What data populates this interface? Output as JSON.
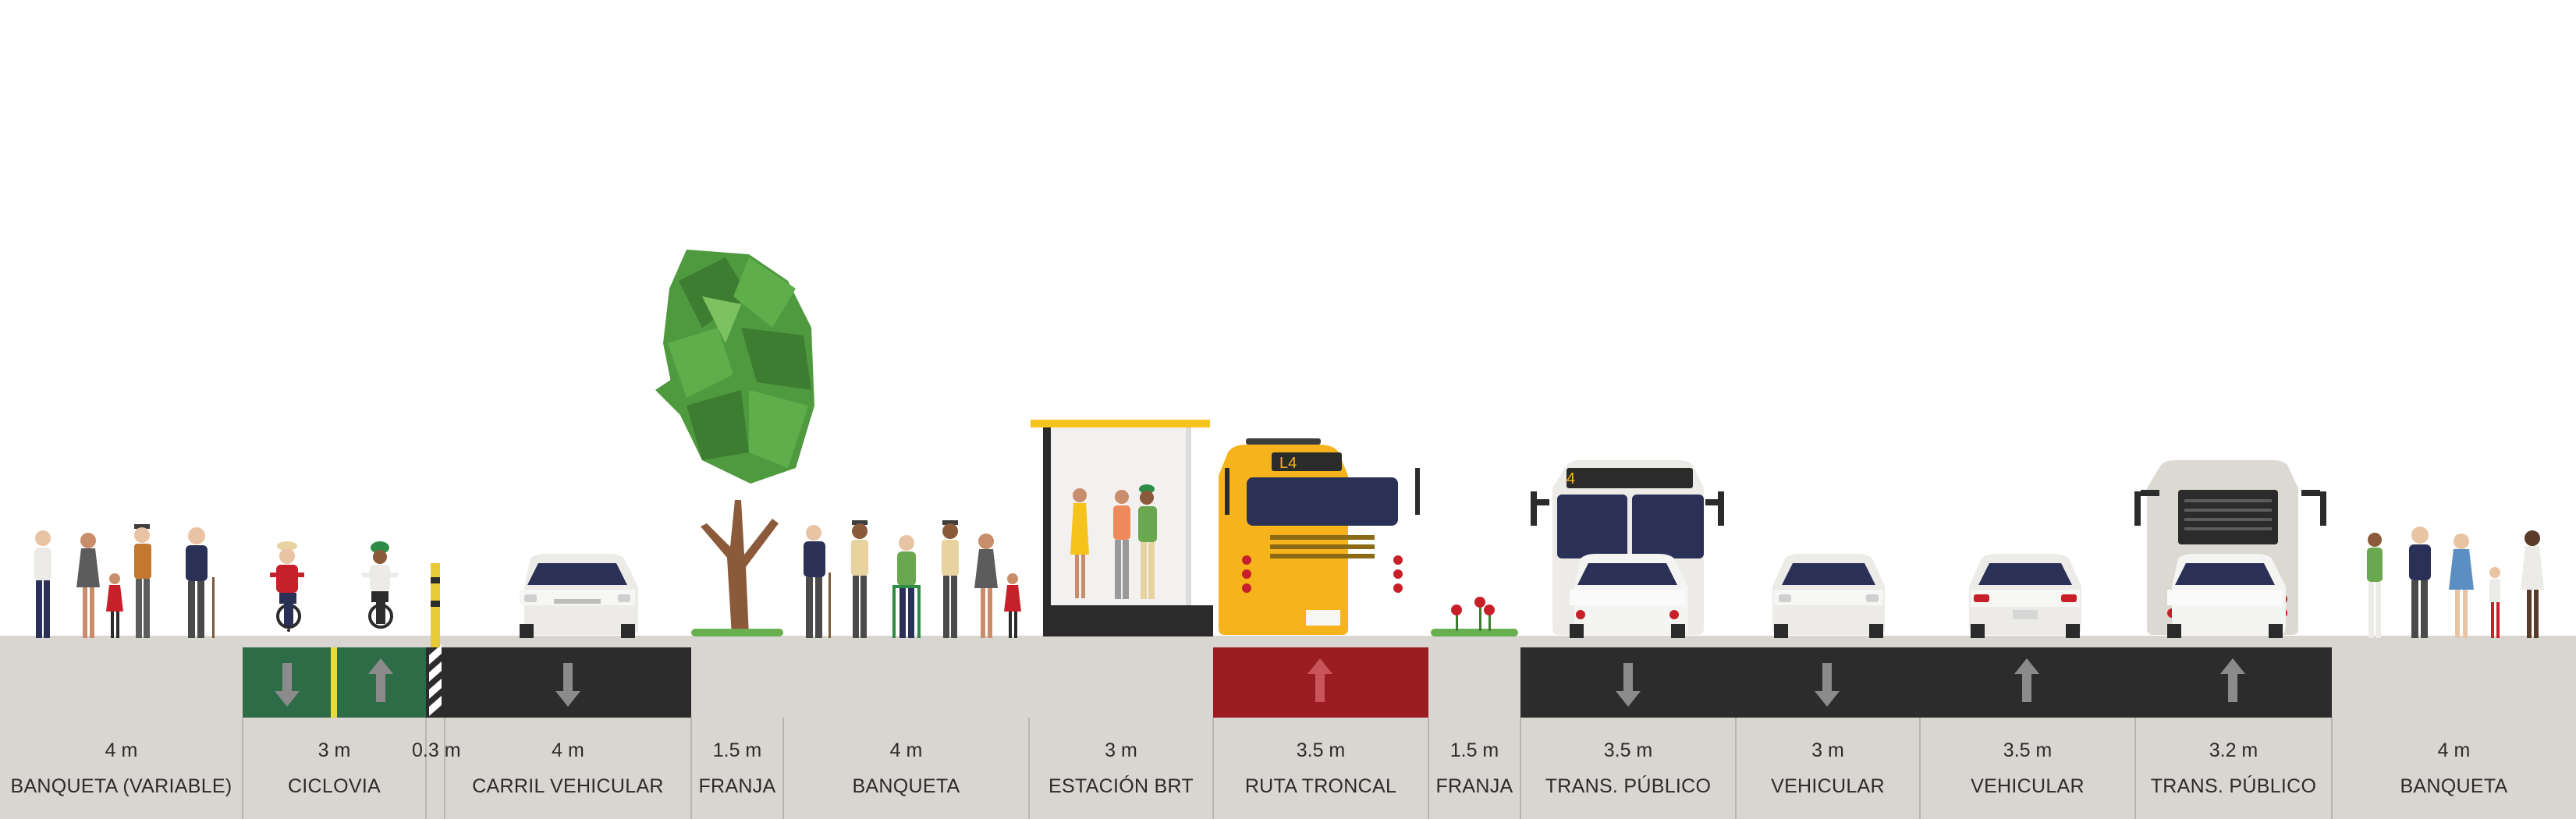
{
  "segments": [
    {
      "width": "4 m",
      "label": "BANQUETA (VARIABLE)"
    },
    {
      "width": "3 m",
      "label": "CICLOVIA"
    },
    {
      "width": "0.3 m",
      "label": ""
    },
    {
      "width": "4 m",
      "label": "CARRIL VEHICULAR"
    },
    {
      "width": "1.5 m",
      "label": "FRANJA"
    },
    {
      "width": "4 m",
      "label": "BANQUETA"
    },
    {
      "width": "3 m",
      "label": "ESTACIÓN BRT"
    },
    {
      "width": "3.5 m",
      "label": "RUTA TRONCAL"
    },
    {
      "width": "1.5 m",
      "label": "FRANJA"
    },
    {
      "width": "3.5 m",
      "label": "TRANS. PÚBLICO"
    },
    {
      "width": "3 m",
      "label": "VEHICULAR"
    },
    {
      "width": "3.5 m",
      "label": "VEHICULAR"
    },
    {
      "width": "3.2 m",
      "label": "TRANS. PÚBLICO"
    },
    {
      "width": "4 m",
      "label": "BANQUETA"
    }
  ],
  "vehicles": {
    "brt_sign": "L4",
    "bus_sign": "4"
  },
  "colors": {
    "sidewalk": "#d9d6d1",
    "asphalt": "#2c2c2c",
    "bike_lane": "#2e6b47",
    "brt_lane": "#9b1c20",
    "arrow": "#8b8b8b",
    "brt_bus": "#f6b31c",
    "tree": "#4f9a3f"
  },
  "icons": [
    "pedestrian-icon",
    "cyclist-icon",
    "car-icon",
    "tree-icon",
    "brt-station-icon",
    "brt-bus-icon",
    "bus-icon",
    "flowers-icon",
    "lane-arrow-icon"
  ]
}
